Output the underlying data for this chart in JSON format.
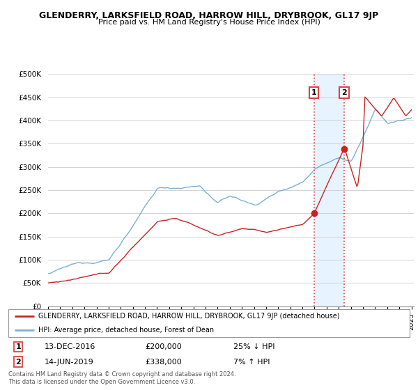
{
  "title": "GLENDERRY, LARKSFIELD ROAD, HARROW HILL, DRYBROOK, GL17 9JP",
  "subtitle": "Price paid vs. HM Land Registry's House Price Index (HPI)",
  "ylim": [
    0,
    500000
  ],
  "yticks": [
    0,
    50000,
    100000,
    150000,
    200000,
    250000,
    300000,
    350000,
    400000,
    450000,
    500000
  ],
  "hpi_color": "#7ab0d4",
  "price_color": "#cc2222",
  "vline_color": "#dd4444",
  "shade_color": "#ddeeff",
  "transaction1": {
    "date": "13-DEC-2016",
    "price": 200000,
    "hpi_rel": "25% ↓ HPI",
    "year": 2016.95
  },
  "transaction2": {
    "date": "14-JUN-2019",
    "price": 338000,
    "hpi_rel": "7% ↑ HPI",
    "year": 2019.45
  },
  "legend_line1": "GLENDERRY, LARKSFIELD ROAD, HARROW HILL, DRYBROOK, GL17 9JP (detached house)",
  "legend_line2": "HPI: Average price, detached house, Forest of Dean",
  "footer": "Contains HM Land Registry data © Crown copyright and database right 2024.\nThis data is licensed under the Open Government Licence v3.0.",
  "background_color": "#ffffff",
  "grid_color": "#cccccc"
}
